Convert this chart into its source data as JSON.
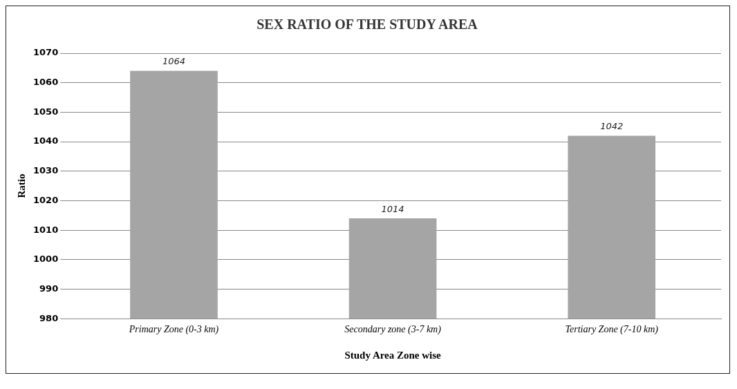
{
  "chart_data": {
    "type": "bar",
    "title": "SEX RATIO OF THE STUDY AREA",
    "xlabel": "Study Area Zone wise",
    "ylabel": "Ratio",
    "categories": [
      "Primary Zone (0-3 km)",
      "Secondary zone (3-7 km)",
      "Tertiary Zone (7-10 km)"
    ],
    "values": [
      1064,
      1014,
      1042
    ],
    "color": "#a5a5a5",
    "ylim": [
      980,
      1070
    ],
    "yticks": [
      980,
      990,
      1000,
      1010,
      1020,
      1030,
      1040,
      1050,
      1060,
      1070
    ],
    "grid": "y",
    "data_labels": true
  }
}
